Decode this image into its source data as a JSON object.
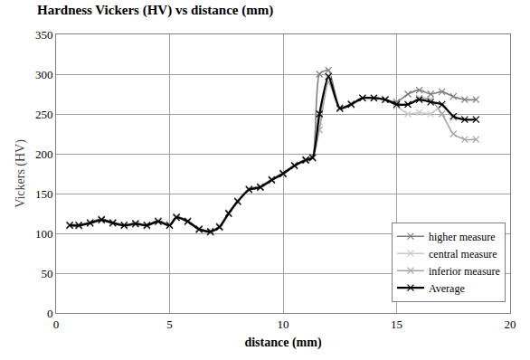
{
  "chart_data": {
    "type": "line",
    "title": "Hardness Vickers (HV) vs distance (mm)",
    "x_label": "distance (mm)",
    "y_label": "Vickers (HV)",
    "x": [
      0.6,
      1.0,
      1.5,
      2.0,
      2.5,
      3.0,
      3.5,
      4.0,
      4.5,
      5.0,
      5.3,
      5.8,
      6.3,
      6.8,
      7.2,
      7.6,
      8.0,
      8.5,
      9.0,
      9.5,
      10.0,
      10.5,
      11.0,
      11.3,
      11.6,
      12.0,
      12.5,
      13.0,
      13.5,
      14.0,
      14.5,
      15.0,
      15.5,
      16.0,
      16.5,
      17.0,
      17.5,
      18.0,
      18.5
    ],
    "series": [
      {
        "name": "higher measure",
        "color": "#7f7f7f",
        "marker": "x",
        "line_style": "solid",
        "values": [
          111,
          111,
          114,
          118,
          114,
          111,
          113,
          111,
          116,
          111,
          121,
          116,
          106,
          103,
          109,
          126,
          141,
          156,
          159,
          168,
          176,
          186,
          193,
          196,
          300,
          305,
          258,
          263,
          270,
          270,
          268,
          265,
          275,
          280,
          275,
          278,
          272,
          268,
          268
        ]
      },
      {
        "name": "central measure",
        "color": "#c8c8c8",
        "marker": "x",
        "line_style": "solid",
        "values": [
          109,
          110,
          112,
          116,
          112,
          109,
          111,
          110,
          114,
          109,
          119,
          114,
          104,
          101,
          107,
          124,
          139,
          154,
          157,
          166,
          174,
          184,
          191,
          194,
          240,
          295,
          256,
          261,
          270,
          270,
          268,
          260,
          250,
          252,
          250,
          260,
          245,
          243,
          243
        ]
      },
      {
        "name": "inferior measure",
        "color": "#a6a6a6",
        "marker": "x",
        "line_style": "solid",
        "values": [
          110,
          109,
          113,
          117,
          113,
          110,
          112,
          109,
          115,
          110,
          120,
          115,
          105,
          102,
          108,
          125,
          140,
          155,
          158,
          167,
          175,
          185,
          192,
          195,
          230,
          290,
          257,
          262,
          270,
          270,
          268,
          261,
          262,
          270,
          268,
          250,
          225,
          218,
          218
        ]
      },
      {
        "name": "Average",
        "color": "#000000",
        "marker": "x",
        "line_style": "solid",
        "values": [
          110,
          110,
          113,
          117,
          113,
          110,
          112,
          110,
          115,
          110,
          120,
          115,
          105,
          102,
          108,
          125,
          140,
          155,
          158,
          167,
          175,
          185,
          192,
          195,
          250,
          297,
          257,
          262,
          270,
          270,
          268,
          262,
          262,
          268,
          265,
          262,
          247,
          243,
          243
        ]
      }
    ],
    "xlim": [
      0,
      20
    ],
    "xticks": [
      0,
      5,
      10,
      15,
      20
    ],
    "ylim": [
      0,
      350
    ],
    "yticks": [
      0,
      50,
      100,
      150,
      200,
      250,
      300,
      350
    ],
    "grid": true,
    "legend": "lower right"
  }
}
